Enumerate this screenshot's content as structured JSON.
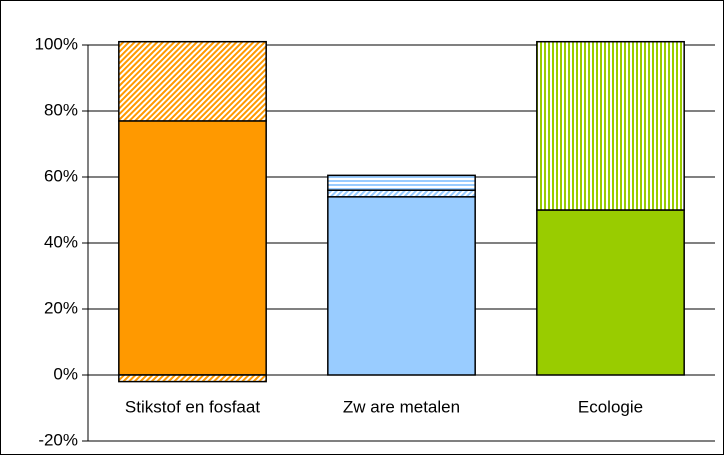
{
  "chart_data": {
    "type": "stacked_bar",
    "categories": [
      "Stikstof en fosfaat",
      "Zw are metalen",
      "Ecologie"
    ],
    "series": [
      {
        "colors": [
          "#ff9900",
          "#99ccff",
          "#99cc00"
        ],
        "patterns": [
          "solid",
          "solid",
          "solid"
        ],
        "values": [
          77,
          54,
          50
        ]
      },
      {
        "colors": [
          "#ff9900",
          "#99ccff",
          "#99cc00"
        ],
        "patterns": [
          "diagonal",
          "diagonal",
          "vertical"
        ],
        "values": [
          24,
          2,
          51
        ]
      },
      {
        "colors": [
          "#ff9900",
          "#99ccff",
          "#99cc00"
        ],
        "patterns": [
          "diagonal",
          "horizontal",
          "vertical"
        ],
        "values": [
          null,
          4.5,
          null
        ]
      },
      {
        "colors": [
          "#ff9900",
          "#99ccff",
          "#99cc00"
        ],
        "patterns": [
          "diagonal",
          "diagonal",
          "diagonal"
        ],
        "values": [
          -2,
          null,
          null
        ]
      }
    ],
    "ylim": [
      -20,
      100
    ],
    "yticks": [
      {
        "value": -20,
        "label": "-20%"
      },
      {
        "value": 0,
        "label": "0%"
      },
      {
        "value": 20,
        "label": "20%"
      },
      {
        "value": 40,
        "label": "40%"
      },
      {
        "value": 60,
        "label": "60%"
      },
      {
        "value": 80,
        "label": "80%"
      },
      {
        "value": 100,
        "label": "100%"
      }
    ],
    "grid": true
  }
}
